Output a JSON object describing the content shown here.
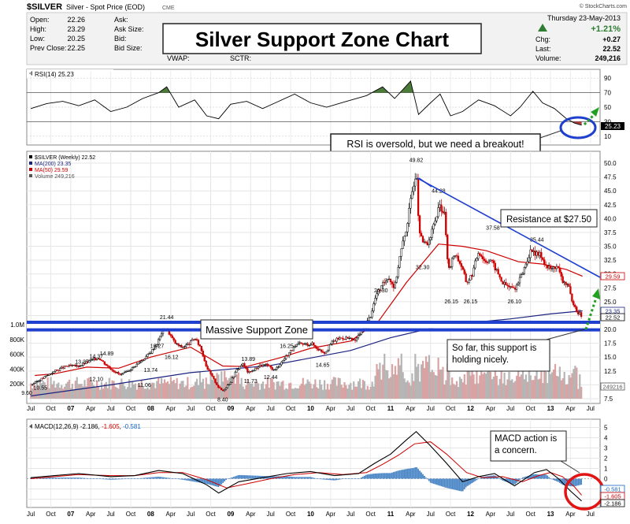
{
  "header": {
    "symbol": "$SILVER",
    "description": "Silver - Spot Price (EOD)",
    "exchange": "CME",
    "watermark": "© StockCharts.com",
    "date": "Thursday 23-May-2013",
    "change_pct": "+1.21%",
    "change_label": "Chg:",
    "change_value": "+0.27",
    "last_label": "Last:",
    "last_value": "22.52",
    "volume_label": "Volume:",
    "volume_value": "249,216",
    "stats_left": [
      {
        "label": "Open:",
        "value": "22.26"
      },
      {
        "label": "High:",
        "value": "23.29"
      },
      {
        "label": "Low:",
        "value": "20.25"
      },
      {
        "label": "Prev Close:",
        "value": "22.25"
      }
    ],
    "stats_mid": [
      {
        "label": "Ask:"
      },
      {
        "label": "Ask Size:"
      },
      {
        "label": "Bid:"
      },
      {
        "label": "Bid Size:"
      }
    ],
    "vwap_label": "VWAP:",
    "sctr_label": "SCTR:"
  },
  "title": "Silver Support Zone Chart",
  "rsi_panel": {
    "label": "RSI(14) 25.23",
    "value_tag": "25.23",
    "levels": [
      "90",
      "70",
      "50",
      "30",
      "10"
    ],
    "annotation": "RSI is oversold, but we need a breakout!"
  },
  "price_panel": {
    "legend": [
      {
        "text": "$SILVER (Weekly) 22.52",
        "color": "#000000"
      },
      {
        "text": "MA(200) 23.35",
        "color": "#1a237e"
      },
      {
        "text": "MA(50) 29.59",
        "color": "#cc0000"
      },
      {
        "text": "Volume 249,216",
        "color": "#555555"
      }
    ],
    "price_ticks": [
      "50.0",
      "47.5",
      "45.0",
      "42.5",
      "40.0",
      "37.5",
      "35.0",
      "32.5",
      "30.0",
      "27.5",
      "25.0",
      "22.5",
      "20.0",
      "17.5",
      "15.0",
      "12.5",
      "10.0",
      "7.5"
    ],
    "volume_ticks": [
      "1.0M",
      "800K",
      "600K",
      "400K",
      "200K"
    ],
    "tags": [
      {
        "text": "29.59",
        "color": "#cc0000"
      },
      {
        "text": "23.35",
        "color": "#1a237e"
      },
      {
        "text": "22.52",
        "color": "#000000"
      },
      {
        "text": "249216",
        "color": "#555555"
      }
    ],
    "support_label": "Massive Support Zone",
    "resistance_label": "Resistance at $27.50",
    "support_note": "So far, this support is holding nicely."
  },
  "macd_panel": {
    "label": "MACD(12,26,9) -2.186, -1.605, -0.581",
    "label_parts": {
      "head": "MACD(12,26,9)",
      "v1": "-2.186",
      "v2": "-1.605",
      "v3": "-0.581"
    },
    "ticks": [
      "5",
      "4",
      "3",
      "2",
      "1",
      "0",
      "-1",
      "-2"
    ],
    "tags": [
      {
        "text": "-0.581",
        "color": "#1565c0"
      },
      {
        "text": "-1.605",
        "color": "#cc0000"
      },
      {
        "text": "-2.186",
        "color": "#000000"
      }
    ],
    "annotation": "MACD action is a concern."
  },
  "x_axis": {
    "labels": [
      "Jul",
      "Oct",
      "07",
      "Apr",
      "Jul",
      "Oct",
      "08",
      "Apr",
      "Jul",
      "Oct",
      "09",
      "Apr",
      "Jul",
      "Oct",
      "10",
      "Apr",
      "Jul",
      "Oct",
      "11",
      "Apr",
      "Jul",
      "Oct",
      "12",
      "Apr",
      "Jul",
      "Oct",
      "13",
      "Apr",
      "Jul"
    ]
  },
  "chart_data": {
    "type": "line",
    "title": "Silver Support Zone Chart",
    "subtitle": "$SILVER (Weekly)",
    "ylabel": "",
    "ylim": [
      7.5,
      51
    ],
    "price_path": [
      [
        2006.5,
        10.0
      ],
      [
        2006.65,
        11.2
      ],
      [
        2006.8,
        12.5
      ],
      [
        2006.95,
        13.4
      ],
      [
        2007.1,
        13.4
      ],
      [
        2007.25,
        14.4
      ],
      [
        2007.35,
        14.9
      ],
      [
        2007.45,
        13.5
      ],
      [
        2007.55,
        12.4
      ],
      [
        2007.62,
        11.8
      ],
      [
        2007.7,
        12.3
      ],
      [
        2007.8,
        13.4
      ],
      [
        2007.9,
        14.5
      ],
      [
        2008.0,
        15.9
      ],
      [
        2008.08,
        17.5
      ],
      [
        2008.18,
        20.9
      ],
      [
        2008.22,
        19.6
      ],
      [
        2008.3,
        17.6
      ],
      [
        2008.38,
        16.8
      ],
      [
        2008.46,
        17.2
      ],
      [
        2008.55,
        18.4
      ],
      [
        2008.62,
        16.9
      ],
      [
        2008.7,
        13.2
      ],
      [
        2008.78,
        11.2
      ],
      [
        2008.85,
        9.5
      ],
      [
        2008.9,
        8.9
      ],
      [
        2009.0,
        10.6
      ],
      [
        2009.08,
        12.8
      ],
      [
        2009.15,
        13.8
      ],
      [
        2009.22,
        12.2
      ],
      [
        2009.28,
        12.6
      ],
      [
        2009.35,
        13.4
      ],
      [
        2009.45,
        13.6
      ],
      [
        2009.55,
        12.6
      ],
      [
        2009.65,
        14.4
      ],
      [
        2009.75,
        16.1
      ],
      [
        2009.85,
        17.4
      ],
      [
        2009.92,
        17.3
      ],
      [
        2010.02,
        17.4
      ],
      [
        2010.1,
        16.4
      ],
      [
        2010.18,
        15.8
      ],
      [
        2010.26,
        17.6
      ],
      [
        2010.35,
        18.4
      ],
      [
        2010.45,
        18.5
      ],
      [
        2010.55,
        17.9
      ],
      [
        2010.65,
        19.9
      ],
      [
        2010.75,
        22.5
      ],
      [
        2010.82,
        26.3
      ],
      [
        2010.9,
        28.0
      ],
      [
        2010.97,
        29.6
      ],
      [
        2011.05,
        27.5
      ],
      [
        2011.12,
        33.5
      ],
      [
        2011.2,
        38.5
      ],
      [
        2011.28,
        46.0
      ],
      [
        2011.32,
        48.6
      ],
      [
        2011.36,
        37.0
      ],
      [
        2011.42,
        35.4
      ],
      [
        2011.48,
        35.6
      ],
      [
        2011.55,
        39.5
      ],
      [
        2011.62,
        42.4
      ],
      [
        2011.68,
        40.5
      ],
      [
        2011.72,
        30.2
      ],
      [
        2011.8,
        33.9
      ],
      [
        2011.88,
        31.7
      ],
      [
        2011.95,
        28.4
      ],
      [
        2012.02,
        30.0
      ],
      [
        2012.1,
        34.2
      ],
      [
        2012.18,
        32.3
      ],
      [
        2012.25,
        32.6
      ],
      [
        2012.33,
        30.5
      ],
      [
        2012.4,
        28.4
      ],
      [
        2012.48,
        27.7
      ],
      [
        2012.55,
        27.4
      ],
      [
        2012.62,
        29.1
      ],
      [
        2012.68,
        31.4
      ],
      [
        2012.75,
        34.0
      ],
      [
        2012.8,
        33.6
      ],
      [
        2012.88,
        33.5
      ],
      [
        2012.95,
        31.3
      ],
      [
        2013.02,
        30.9
      ],
      [
        2013.08,
        31.6
      ],
      [
        2013.15,
        28.7
      ],
      [
        2013.22,
        28.1
      ],
      [
        2013.28,
        24.2
      ],
      [
        2013.33,
        23.3
      ],
      [
        2013.39,
        22.5
      ]
    ],
    "price_annotations": [
      {
        "x": 2008.2,
        "y": 21.44,
        "label": "21.44"
      },
      {
        "x": 2008.58,
        "y": 19.8,
        "label": "19.8"
      },
      {
        "x": 2007.14,
        "y": 13.37,
        "label": "13.37"
      },
      {
        "x": 2007.32,
        "y": 14.37,
        "label": "14.37"
      },
      {
        "x": 2007.45,
        "y": 14.89,
        "label": "14.89"
      },
      {
        "x": 2006.62,
        "y": 10.55,
        "label": "10.55"
      },
      {
        "x": 2007.32,
        "y": 12.1,
        "label": "12.10"
      },
      {
        "x": 2007.92,
        "y": 11.06,
        "label": "11.06"
      },
      {
        "x": 2008.08,
        "y": 16.27,
        "label": "16.27"
      },
      {
        "x": 2008.26,
        "y": 16.12,
        "label": "16.12"
      },
      {
        "x": 2008.0,
        "y": 13.74,
        "label": "13.74"
      },
      {
        "x": 2008.9,
        "y": 8.4,
        "label": "8.40"
      },
      {
        "x": 2006.45,
        "y": 9.6,
        "label": "9.60"
      },
      {
        "x": 2009.22,
        "y": 13.89,
        "label": "13.89"
      },
      {
        "x": 2009.25,
        "y": 11.73,
        "label": "11.73"
      },
      {
        "x": 2009.5,
        "y": 12.44,
        "label": "12.44"
      },
      {
        "x": 2009.7,
        "y": 16.25,
        "label": "16.25"
      },
      {
        "x": 2010.15,
        "y": 14.65,
        "label": "14.65"
      },
      {
        "x": 2010.88,
        "y": 26.3,
        "label": "26.30"
      },
      {
        "x": 2011.32,
        "y": 49.82,
        "label": "49.82"
      },
      {
        "x": 2011.4,
        "y": 32.3,
        "label": "32.30"
      },
      {
        "x": 2011.6,
        "y": 44.28,
        "label": "44.28"
      },
      {
        "x": 2011.76,
        "y": 26.15,
        "label": "26.15"
      },
      {
        "x": 2012.0,
        "y": 26.15,
        "label": "26.15"
      },
      {
        "x": 2012.28,
        "y": 37.58,
        "label": "37.58"
      },
      {
        "x": 2012.55,
        "y": 26.1,
        "label": "26.10"
      },
      {
        "x": 2012.83,
        "y": 35.44,
        "label": "35.44"
      }
    ],
    "ma50_path": [
      [
        2006.55,
        11.7
      ],
      [
        2006.8,
        12.0
      ],
      [
        2007.2,
        13.2
      ],
      [
        2007.6,
        13.0
      ],
      [
        2008.0,
        15.0
      ],
      [
        2008.5,
        16.8
      ],
      [
        2008.9,
        13.4
      ],
      [
        2009.2,
        13.3
      ],
      [
        2009.6,
        14.8
      ],
      [
        2010.0,
        16.6
      ],
      [
        2010.5,
        17.9
      ],
      [
        2010.85,
        21.5
      ],
      [
        2011.2,
        28.5
      ],
      [
        2011.6,
        35.4
      ],
      [
        2011.9,
        35.0
      ],
      [
        2012.2,
        34.2
      ],
      [
        2012.6,
        32.2
      ],
      [
        2012.9,
        31.8
      ],
      [
        2013.2,
        30.8
      ],
      [
        2013.4,
        29.59
      ]
    ],
    "ma200_path": [
      [
        2006.5,
        8.0
      ],
      [
        2007.5,
        10.0
      ],
      [
        2008.5,
        12.2
      ],
      [
        2009.5,
        13.5
      ],
      [
        2010.5,
        16.2
      ],
      [
        2011.0,
        18.5
      ],
      [
        2011.5,
        20.2
      ],
      [
        2012.0,
        21.2
      ],
      [
        2012.5,
        21.9
      ],
      [
        2013.0,
        22.8
      ],
      [
        2013.4,
        23.35
      ]
    ],
    "support_zone": [
      20.2,
      21.0
    ],
    "volume_series_note": "weekly volume bars, in the volume scale of the price panel",
    "volume_peak_value": 1000000,
    "rsi": {
      "ylim": [
        0,
        100
      ],
      "levels": [
        90,
        70,
        50,
        30,
        10
      ],
      "last": 25.23,
      "path": [
        [
          2006.5,
          48
        ],
        [
          2006.7,
          55
        ],
        [
          2006.9,
          58
        ],
        [
          2007.1,
          52
        ],
        [
          2007.3,
          60
        ],
        [
          2007.5,
          44
        ],
        [
          2007.7,
          50
        ],
        [
          2007.9,
          62
        ],
        [
          2008.1,
          70
        ],
        [
          2008.2,
          78
        ],
        [
          2008.35,
          50
        ],
        [
          2008.55,
          60
        ],
        [
          2008.7,
          38
        ],
        [
          2008.85,
          34
        ],
        [
          2009.0,
          54
        ],
        [
          2009.2,
          58
        ],
        [
          2009.4,
          48
        ],
        [
          2009.6,
          58
        ],
        [
          2009.8,
          68
        ],
        [
          2010.0,
          56
        ],
        [
          2010.2,
          50
        ],
        [
          2010.45,
          58
        ],
        [
          2010.7,
          66
        ],
        [
          2010.9,
          78
        ],
        [
          2011.05,
          62
        ],
        [
          2011.25,
          86
        ],
        [
          2011.35,
          40
        ],
        [
          2011.5,
          56
        ],
        [
          2011.62,
          68
        ],
        [
          2011.75,
          38
        ],
        [
          2011.9,
          44
        ],
        [
          2012.1,
          60
        ],
        [
          2012.3,
          52
        ],
        [
          2012.5,
          38
        ],
        [
          2012.62,
          50
        ],
        [
          2012.78,
          72
        ],
        [
          2012.9,
          56
        ],
        [
          2013.05,
          48
        ],
        [
          2013.2,
          34
        ],
        [
          2013.3,
          28
        ],
        [
          2013.39,
          25.23
        ]
      ]
    },
    "macd": {
      "ylim": [
        -2.5,
        5.5
      ],
      "last": [
        -2.186,
        -1.605,
        -0.581
      ],
      "macd_path": [
        [
          2006.5,
          0.1
        ],
        [
          2006.8,
          0.3
        ],
        [
          2007.1,
          0.5
        ],
        [
          2007.5,
          0.2
        ],
        [
          2007.8,
          0.3
        ],
        [
          2008.1,
          0.8
        ],
        [
          2008.4,
          0.5
        ],
        [
          2008.7,
          -0.6
        ],
        [
          2008.85,
          -1.4
        ],
        [
          2009.1,
          -0.3
        ],
        [
          2009.4,
          0.1
        ],
        [
          2009.7,
          0.5
        ],
        [
          2010.0,
          0.7
        ],
        [
          2010.3,
          0.3
        ],
        [
          2010.6,
          0.5
        ],
        [
          2010.8,
          1.5
        ],
        [
          2011.0,
          2.4
        ],
        [
          2011.2,
          3.8
        ],
        [
          2011.32,
          4.6
        ],
        [
          2011.5,
          3.2
        ],
        [
          2011.7,
          1.5
        ],
        [
          2011.9,
          -0.3
        ],
        [
          2012.1,
          0.2
        ],
        [
          2012.3,
          0.5
        ],
        [
          2012.55,
          -0.7
        ],
        [
          2012.8,
          0.6
        ],
        [
          2012.95,
          0.9
        ],
        [
          2013.1,
          0.0
        ],
        [
          2013.25,
          -1.2
        ],
        [
          2013.39,
          -2.186
        ]
      ],
      "signal_path": [
        [
          2006.5,
          0.0
        ],
        [
          2006.8,
          0.2
        ],
        [
          2007.1,
          0.4
        ],
        [
          2007.5,
          0.3
        ],
        [
          2007.8,
          0.3
        ],
        [
          2008.1,
          0.6
        ],
        [
          2008.4,
          0.6
        ],
        [
          2008.7,
          -0.1
        ],
        [
          2008.95,
          -0.9
        ],
        [
          2009.2,
          -0.5
        ],
        [
          2009.5,
          0.0
        ],
        [
          2009.8,
          0.4
        ],
        [
          2010.1,
          0.6
        ],
        [
          2010.4,
          0.4
        ],
        [
          2010.7,
          0.6
        ],
        [
          2010.9,
          1.4
        ],
        [
          2011.1,
          2.3
        ],
        [
          2011.3,
          3.4
        ],
        [
          2011.5,
          3.6
        ],
        [
          2011.7,
          2.4
        ],
        [
          2011.95,
          0.6
        ],
        [
          2012.15,
          0.1
        ],
        [
          2012.4,
          0.2
        ],
        [
          2012.65,
          -0.3
        ],
        [
          2012.85,
          0.3
        ],
        [
          2013.0,
          0.6
        ],
        [
          2013.15,
          0.2
        ],
        [
          2013.3,
          -0.8
        ],
        [
          2013.39,
          -1.605
        ]
      ]
    }
  }
}
